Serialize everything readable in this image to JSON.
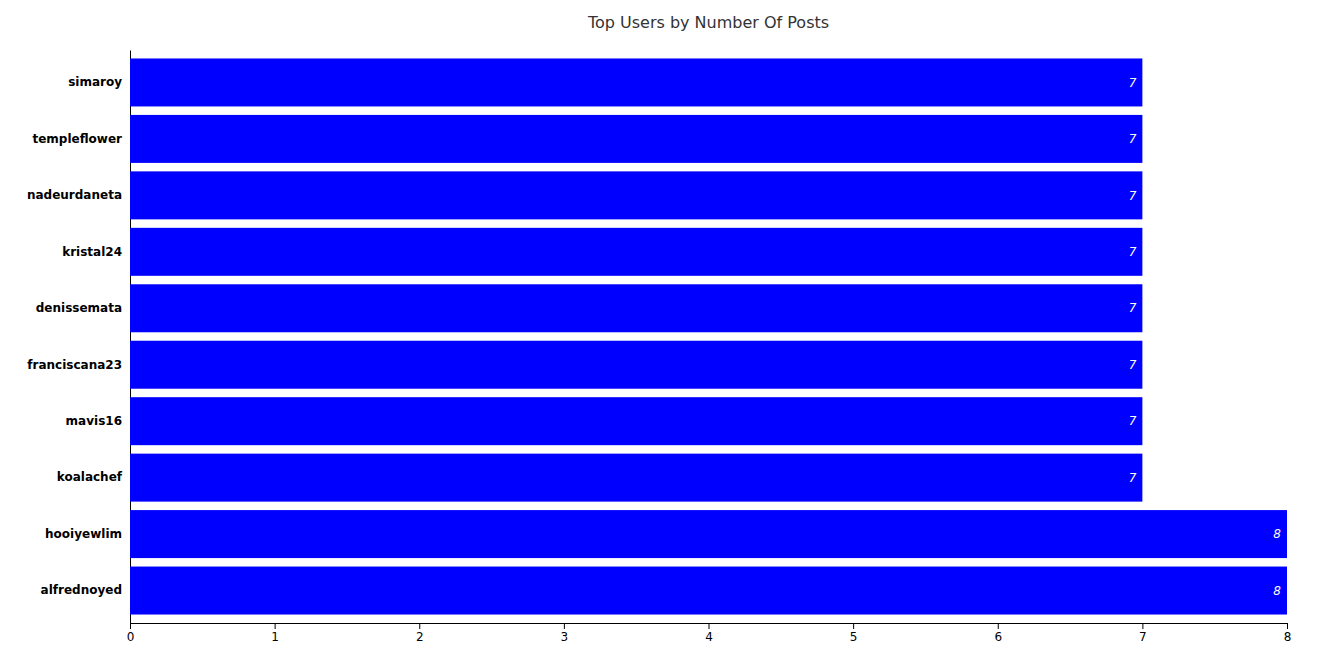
{
  "chart_data": {
    "type": "bar",
    "orientation": "horizontal",
    "title": "Top Users by Number Of Posts",
    "categories": [
      "alfrednoyed",
      "hooiyewlim",
      "koalachef",
      "mavis16",
      "franciscana23",
      "denissemata",
      "kristal24",
      "nadeurdaneta",
      "templeflower",
      "simaroy"
    ],
    "values": [
      8,
      8,
      7,
      7,
      7,
      7,
      7,
      7,
      7,
      7
    ],
    "color": "#0000ff",
    "xlim": [
      0,
      8
    ],
    "xticks": [
      0,
      1,
      2,
      3,
      4,
      5,
      6,
      7,
      8
    ],
    "grid": false,
    "data_labels": true
  }
}
